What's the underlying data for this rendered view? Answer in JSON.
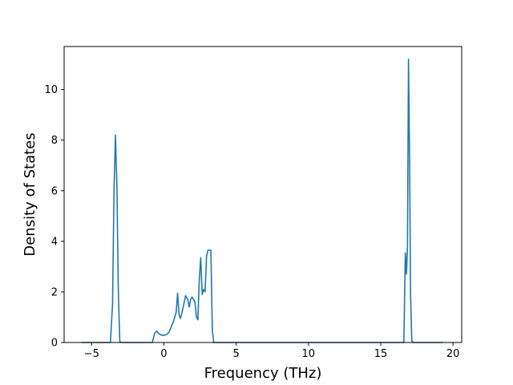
{
  "chart_data": {
    "type": "line",
    "title": "",
    "xlabel": "Frequency (THz)",
    "ylabel": "Density of States",
    "xlim": [
      -6.9,
      20.6
    ],
    "ylim": [
      0,
      11.7
    ],
    "xticks": [
      -5,
      0,
      5,
      10,
      15,
      20
    ],
    "yticks": [
      0,
      2,
      4,
      6,
      8,
      10
    ],
    "grid": false,
    "legend": "none",
    "colors": {
      "line": "#1f77b4",
      "axes": "#000000",
      "background": "#ffffff"
    },
    "series": [
      {
        "x": [
          -5.7,
          -3.7,
          -3.55,
          -3.45,
          -3.35,
          -3.25,
          -3.15,
          -3.05,
          -2.95,
          -2.0,
          -0.8,
          -0.65,
          -0.5,
          -0.35,
          -0.2,
          0.0,
          0.2,
          0.35,
          0.5,
          0.7,
          0.85,
          0.95,
          1.05,
          1.15,
          1.3,
          1.5,
          1.65,
          1.75,
          1.85,
          1.95,
          2.05,
          2.15,
          2.25,
          2.35,
          2.45,
          2.55,
          2.65,
          2.75,
          2.85,
          2.95,
          3.05,
          3.15,
          3.25,
          3.35,
          3.45,
          3.55,
          3.65,
          16.6,
          16.7,
          16.78,
          16.85,
          16.92,
          17.0,
          17.06,
          17.15,
          17.25,
          19.3
        ],
        "y": [
          0,
          0,
          1.5,
          6.0,
          8.2,
          6.2,
          2.0,
          0.05,
          0,
          0,
          0,
          0.35,
          0.45,
          0.35,
          0.3,
          0.28,
          0.32,
          0.4,
          0.6,
          0.9,
          1.2,
          1.95,
          1.1,
          0.95,
          1.3,
          1.85,
          1.7,
          1.4,
          1.7,
          1.8,
          1.7,
          1.6,
          1.0,
          0.9,
          2.5,
          3.35,
          1.9,
          2.1,
          2.0,
          3.4,
          3.65,
          3.65,
          3.65,
          0.5,
          0.0,
          0,
          0,
          0,
          3.55,
          2.7,
          3.8,
          11.2,
          7.0,
          2.0,
          0.05,
          0,
          0
        ]
      }
    ]
  }
}
